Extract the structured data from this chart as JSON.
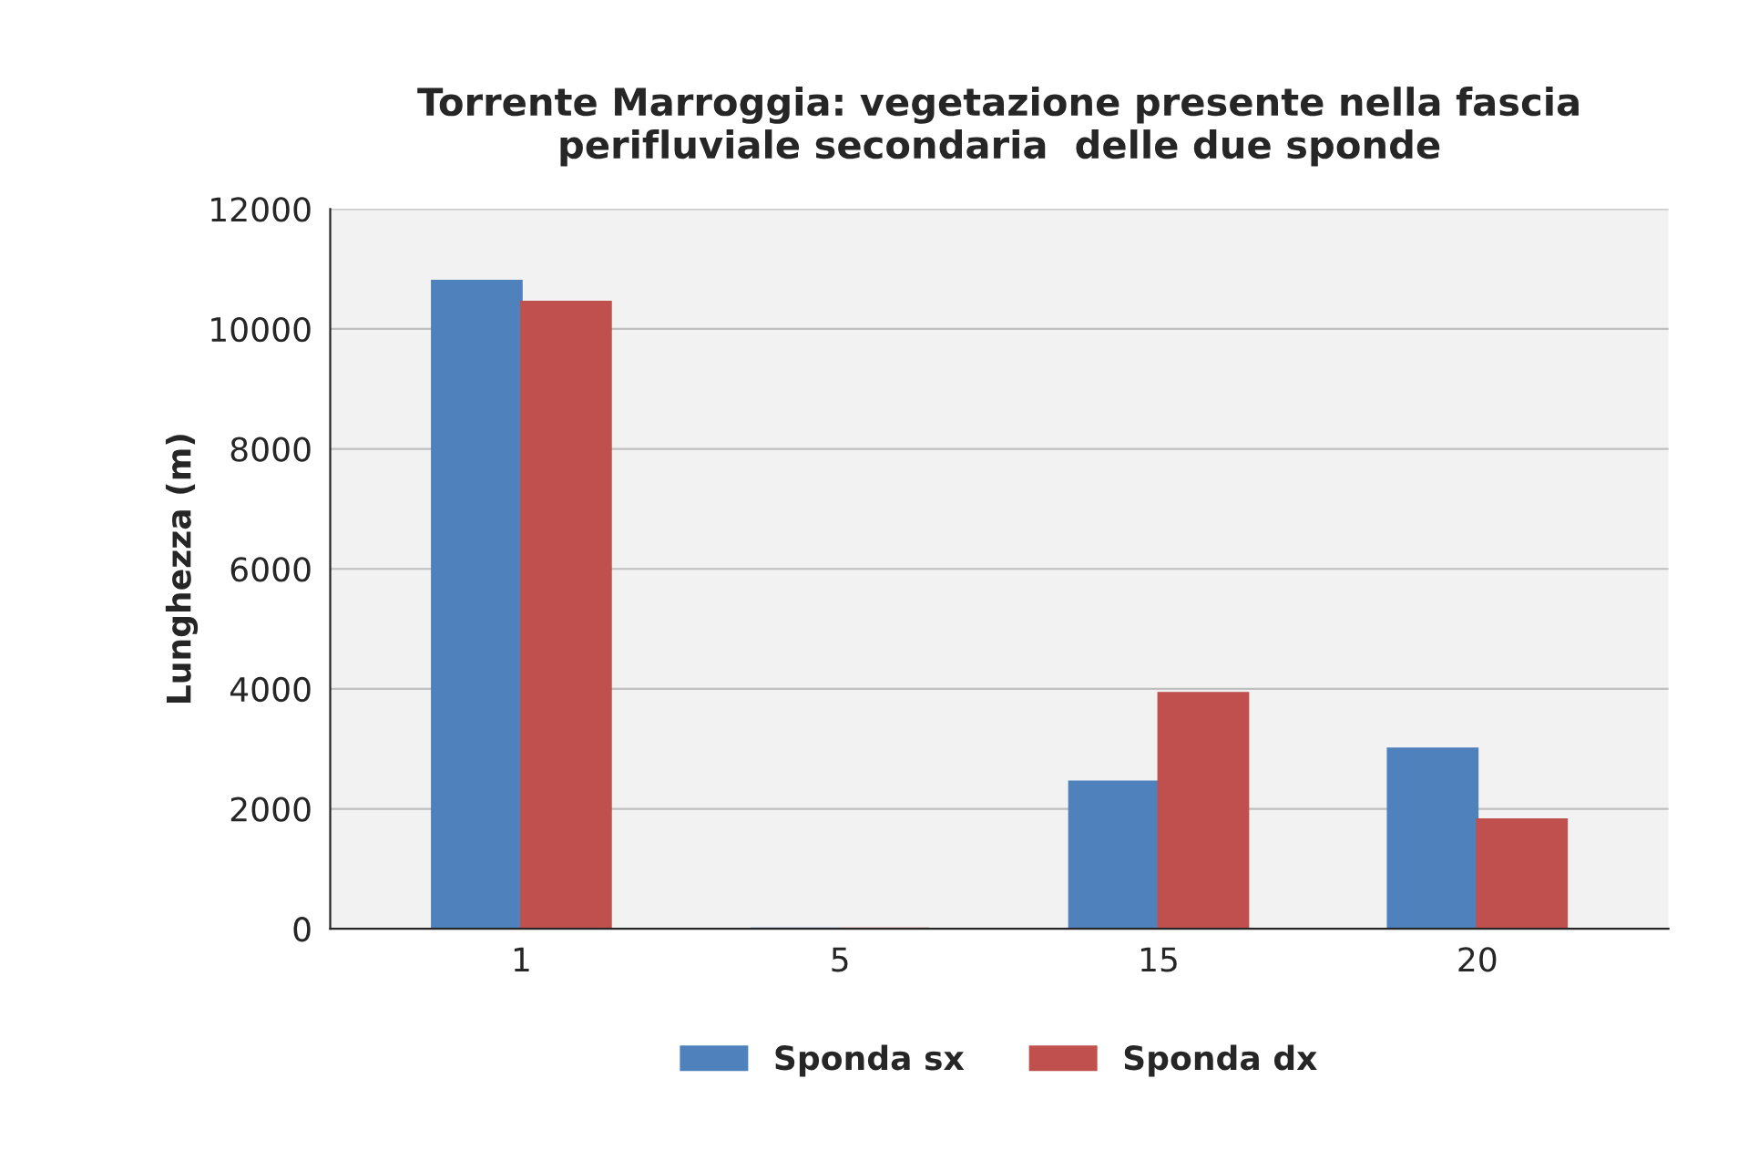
{
  "chart_data": {
    "type": "bar",
    "title": "Torrente Marroggia: vegetazione presente nella fascia\nperifluviale secondaria  delle due sponde",
    "ylabel": "Lunghezza (m)",
    "categories": [
      "1",
      "5",
      "15",
      "20"
    ],
    "series": [
      {
        "name": "Sponda sx",
        "color": "#4f81bd",
        "values": [
          10800,
          0,
          2450,
          3000
        ]
      },
      {
        "name": "Sponda dx",
        "color": "#c0504d",
        "values": [
          10450,
          0,
          3930,
          1820
        ]
      }
    ],
    "ylim": [
      0,
      12000
    ],
    "yticks": [
      0,
      2000,
      4000,
      6000,
      8000,
      10000,
      12000
    ],
    "grid": "y",
    "legend": "bottom"
  }
}
